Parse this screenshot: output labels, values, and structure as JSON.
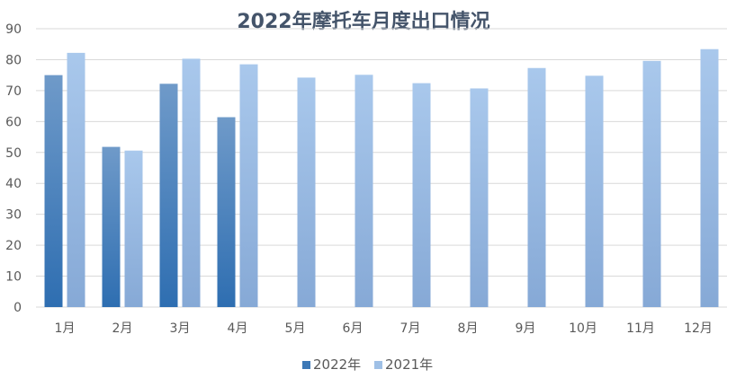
{
  "chart_data": {
    "type": "bar",
    "title": "2022年摩托车月度出口情况",
    "categories": [
      "1月",
      "2月",
      "3月",
      "4月",
      "5月",
      "6月",
      "7月",
      "8月",
      "9月",
      "10月",
      "11月",
      "12月"
    ],
    "series": [
      {
        "name": "2022年",
        "values": [
          75,
          51.8,
          72.2,
          61.4,
          null,
          null,
          null,
          null,
          null,
          null,
          null,
          null
        ],
        "color": "#3d78b6"
      },
      {
        "name": "2021年",
        "values": [
          82.2,
          50.6,
          80.3,
          78.5,
          74.2,
          75.1,
          72.4,
          70.7,
          77.3,
          74.8,
          79.6,
          83.4
        ],
        "color": "#9fc0e6"
      }
    ],
    "ylim": [
      0,
      90
    ],
    "yticks": [
      0,
      10,
      20,
      30,
      40,
      50,
      60,
      70,
      80,
      90
    ],
    "grid": true,
    "legend_position": "bottom"
  }
}
